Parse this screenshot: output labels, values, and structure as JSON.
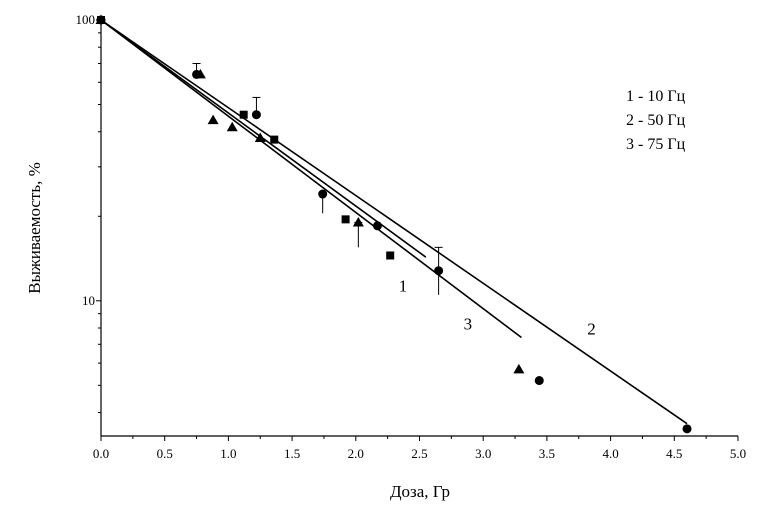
{
  "chart_data": {
    "type": "scatter",
    "title": "",
    "xlabel": "Доза, Гр",
    "ylabel": "Выживаемость, %",
    "x_range": [
      0.0,
      5.0
    ],
    "y_range": [
      3.3,
      100
    ],
    "y_scale": "log",
    "x_ticks": [
      "0.0",
      "0.5",
      "1.0",
      "1.5",
      "2.0",
      "2.5",
      "3.0",
      "3.5",
      "4.0",
      "4.5",
      "5.0"
    ],
    "y_tick_values": [
      10,
      100
    ],
    "y_tick_labels": [
      "10",
      "100"
    ],
    "grid": false,
    "legend_position": "top-right",
    "legend": [
      "1 - 10 Гц",
      "2 - 50 Гц",
      "3 - 75 Гц"
    ],
    "series": [
      {
        "marker": "square",
        "color": "#000000",
        "points": [
          [
            0.0,
            100
          ],
          [
            1.12,
            46
          ],
          [
            1.36,
            37.5
          ],
          [
            1.92,
            19.5
          ],
          [
            2.27,
            14.5
          ]
        ],
        "fit": {
          "label": "1",
          "x": [
            0.0,
            2.55
          ],
          "y": [
            100,
            14.3
          ]
        }
      },
      {
        "marker": "circle",
        "color": "#000000",
        "points": [
          [
            0.0,
            100
          ],
          [
            0.75,
            64
          ],
          [
            1.22,
            46
          ],
          [
            1.74,
            24
          ],
          [
            2.17,
            18.5
          ],
          [
            2.65,
            12.8
          ],
          [
            3.44,
            5.2
          ],
          [
            4.6,
            3.5
          ]
        ],
        "fit": {
          "label": "2",
          "x": [
            0.0,
            4.6
          ],
          "y": [
            100,
            3.65
          ]
        }
      },
      {
        "marker": "triangle",
        "color": "#000000",
        "points": [
          [
            0.0,
            100
          ],
          [
            0.78,
            64
          ],
          [
            0.88,
            44
          ],
          [
            1.03,
            41.5
          ],
          [
            1.25,
            38
          ],
          [
            2.02,
            19
          ],
          [
            3.28,
            5.7
          ]
        ],
        "fit": {
          "label": "3",
          "x": [
            0.0,
            3.3
          ],
          "y": [
            100,
            7.4
          ]
        }
      }
    ],
    "error_bars": [
      {
        "x": 0.75,
        "y_low": 64,
        "y_high": 70
      },
      {
        "x": 1.22,
        "y_low": 46,
        "y_high": 53
      },
      {
        "x": 1.74,
        "y_low": 20.5,
        "y_high": 24
      },
      {
        "x": 2.02,
        "y_low": 15.5,
        "y_high": 19
      },
      {
        "x": 2.65,
        "y_low": 10.5,
        "y_high": 15.5
      }
    ]
  }
}
